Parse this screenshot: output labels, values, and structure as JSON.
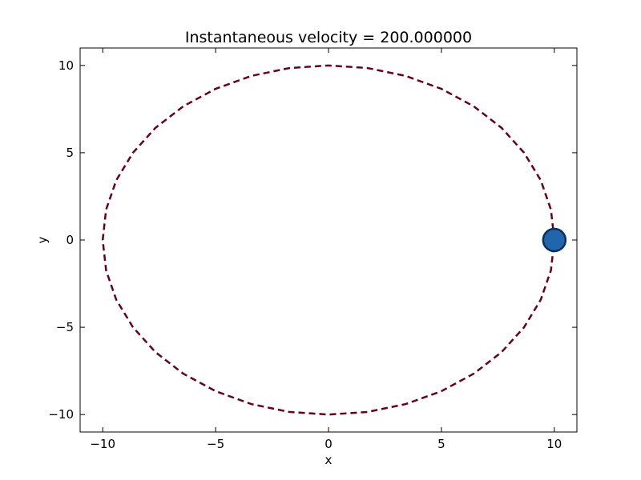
{
  "chart_data": {
    "type": "line",
    "title": "Instantaneous velocity = 200.000000",
    "xlabel": "x",
    "ylabel": "y",
    "xlim": [
      -11,
      11
    ],
    "ylim": [
      -11,
      11
    ],
    "xticks": [
      -10,
      -5,
      0,
      5,
      10
    ],
    "yticks": [
      -10,
      -5,
      0,
      5,
      10
    ],
    "xtick_labels": [
      "−10",
      "−5",
      "0",
      "5",
      "10"
    ],
    "ytick_labels": [
      "−10",
      "−5",
      "0",
      "5",
      "10"
    ],
    "grid": false,
    "series": [
      {
        "kind": "dashed-curve",
        "color": "#67001f",
        "x": [
          10.0,
          9.85,
          9.4,
          8.66,
          7.66,
          6.43,
          5.0,
          3.42,
          1.74,
          0.0,
          -1.74,
          -3.42,
          -5.0,
          -6.43,
          -7.66,
          -8.66,
          -9.4,
          -9.85,
          -10.0,
          -9.85,
          -9.4,
          -8.66,
          -7.66,
          -6.43,
          -5.0,
          -3.42,
          -1.74,
          0.0,
          1.74,
          3.42,
          5.0,
          6.43,
          7.66,
          8.66,
          9.4,
          9.85,
          10.0
        ],
        "y": [
          0.0,
          1.74,
          3.42,
          5.0,
          6.43,
          7.66,
          8.66,
          9.4,
          9.85,
          10.0,
          9.85,
          9.4,
          8.66,
          7.66,
          6.43,
          5.0,
          3.42,
          1.74,
          0.0,
          -1.74,
          -3.42,
          -5.0,
          -6.43,
          -7.66,
          -8.66,
          -9.4,
          -9.85,
          -10.0,
          -9.85,
          -9.4,
          -8.66,
          -7.66,
          -6.43,
          -5.0,
          -3.42,
          -1.74,
          0.0
        ]
      },
      {
        "kind": "marker",
        "color": "#2166ac",
        "edge_color": "#053061",
        "x": [
          10.0
        ],
        "y": [
          0.0
        ]
      }
    ]
  }
}
